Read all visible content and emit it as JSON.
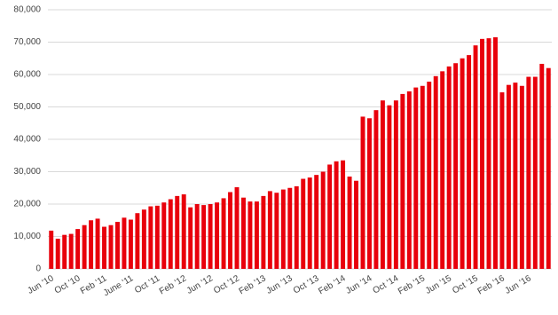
{
  "chart_data": {
    "type": "bar",
    "categories": [
      "Jun '10",
      null,
      null,
      null,
      "Oct '10",
      null,
      null,
      null,
      "Feb '11",
      null,
      null,
      null,
      "June '11",
      null,
      null,
      null,
      "Oct '11",
      null,
      null,
      null,
      "Feb '12",
      null,
      null,
      null,
      "Jun '12",
      null,
      null,
      null,
      "Oct '12",
      null,
      null,
      null,
      "Feb '13",
      null,
      null,
      null,
      "Jun '13",
      null,
      null,
      null,
      "Oct '13",
      null,
      null,
      null,
      "Feb '14",
      null,
      null,
      null,
      "Jun '14",
      null,
      null,
      null,
      "Oct '14",
      null,
      null,
      null,
      "Feb '15",
      null,
      null,
      null,
      "Jun '15",
      null,
      null,
      null,
      "Oct '15",
      null,
      null,
      null,
      "Feb '16",
      null,
      null,
      null,
      "Jun '16",
      null,
      null,
      null
    ],
    "values": [
      11800,
      9300,
      10500,
      10800,
      12300,
      13500,
      15000,
      15500,
      13000,
      13500,
      14500,
      15800,
      15200,
      17200,
      18300,
      19300,
      19500,
      20500,
      21500,
      22500,
      23000,
      19000,
      20000,
      19700,
      20000,
      20500,
      21800,
      23700,
      25200,
      22000,
      20800,
      20800,
      22500,
      24000,
      23500,
      24500,
      25000,
      25500,
      27800,
      28200,
      29000,
      30000,
      32200,
      33200,
      33500,
      28500,
      27200,
      47000,
      46500,
      49000,
      52000,
      50500,
      52000,
      54000,
      54800,
      56000,
      56500,
      57800,
      59500,
      61000,
      62500,
      63500,
      65000,
      66000,
      69000,
      71000,
      71200,
      71500,
      54500,
      56800,
      57500,
      56500,
      59300,
      59300,
      63300,
      62000
    ],
    "color": "#e8000b",
    "ylim": [
      0,
      80000
    ],
    "yticks": [
      0,
      {
        "value": 10000,
        "label": "10,000"
      },
      {
        "value": 20000,
        "label": "20,000"
      },
      {
        "value": 30000,
        "label": "30,000"
      },
      {
        "value": 40000,
        "label": "40,000"
      },
      {
        "value": 50000,
        "label": "50,000"
      },
      {
        "value": 60000,
        "label": "60,000"
      },
      {
        "value": 70000,
        "label": "70,000"
      },
      {
        "value": 80000,
        "label": "80,000"
      }
    ],
    "grid": true
  }
}
